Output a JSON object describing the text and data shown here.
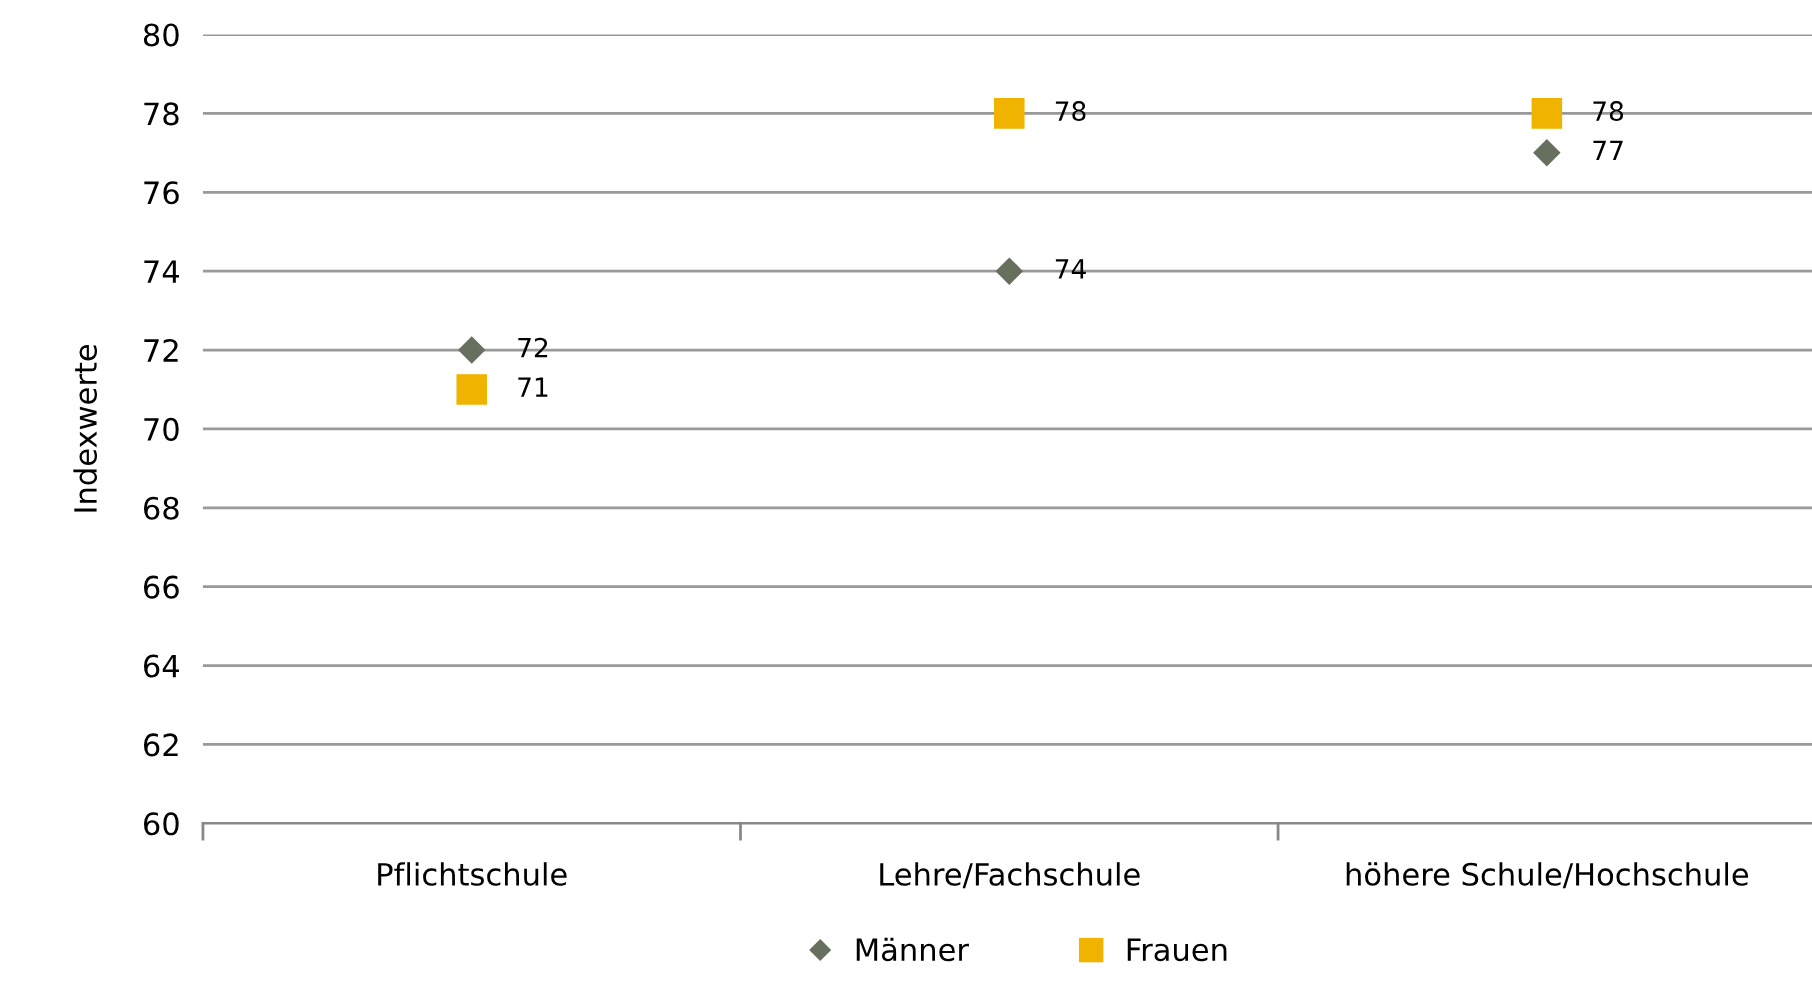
{
  "chart_data": {
    "type": "scatter",
    "ylabel": "Indexwerte",
    "categories": [
      "Pflichtschule",
      "Lehre/Fachschule",
      "höhere Schule/Hochschule"
    ],
    "series": [
      {
        "name": "Männer",
        "color": "#67705f",
        "marker": "diamond",
        "values": [
          72,
          74,
          77
        ]
      },
      {
        "name": "Frauen",
        "color": "#f0b400",
        "marker": "square",
        "values": [
          71,
          78,
          78
        ]
      }
    ],
    "ylim": [
      60,
      80
    ],
    "yticks": [
      60,
      62,
      64,
      66,
      68,
      70,
      72,
      74,
      76,
      78,
      80
    ],
    "grid": "y",
    "legend": "bottom",
    "data_labels": true
  }
}
